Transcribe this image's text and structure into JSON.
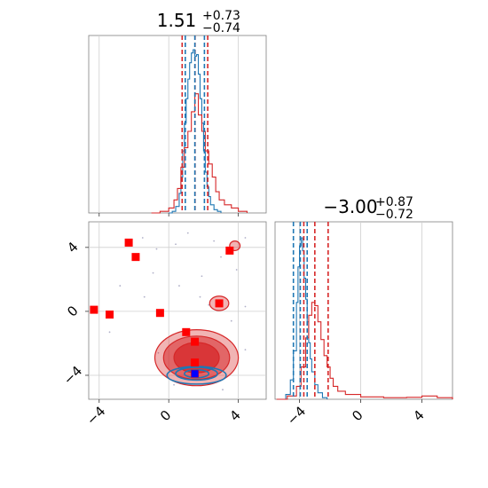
{
  "chart_data": [
    {
      "type": "line",
      "panel": "top-left",
      "title": {
        "value": "1.51",
        "upper": "+0.73",
        "lower": "−0.74"
      },
      "xlim": [
        -4.6,
        5.6
      ],
      "series": [
        {
          "color": "#1f77b4",
          "x": [
            0.0,
            0.2,
            0.4,
            0.6,
            0.7,
            0.8,
            0.9,
            1.0,
            1.1,
            1.2,
            1.3,
            1.4,
            1.5,
            1.6,
            1.7,
            1.8,
            1.9,
            2.0,
            2.1,
            2.2,
            2.3,
            2.4,
            2.6,
            2.8,
            3.0
          ],
          "values": [
            0.0,
            0.01,
            0.04,
            0.12,
            0.22,
            0.38,
            0.55,
            0.7,
            0.82,
            0.92,
            0.98,
            1.0,
            0.96,
            0.97,
            0.85,
            0.7,
            0.55,
            0.38,
            0.25,
            0.16,
            0.1,
            0.05,
            0.02,
            0.01,
            0.0
          ]
        },
        {
          "color": "#d62728",
          "x": [
            -1.0,
            -0.5,
            0.0,
            0.3,
            0.5,
            0.7,
            0.9,
            1.1,
            1.3,
            1.5,
            1.7,
            1.9,
            2.1,
            2.3,
            2.5,
            2.7,
            2.9,
            3.2,
            3.6,
            4.0,
            4.5
          ],
          "values": [
            0.0,
            0.01,
            0.03,
            0.08,
            0.15,
            0.28,
            0.4,
            0.5,
            0.62,
            0.73,
            0.6,
            0.5,
            0.38,
            0.3,
            0.22,
            0.13,
            0.08,
            0.05,
            0.03,
            0.01,
            0.0
          ]
        }
      ],
      "quantile_lines": [
        {
          "color": "#d62728",
          "x": [
            0.77,
            1.51,
            2.24
          ]
        },
        {
          "color": "#1f77b4",
          "x": [
            0.95,
            1.5,
            2.05
          ]
        }
      ]
    },
    {
      "type": "scatter",
      "panel": "bottom-left",
      "xlim": [
        -4.6,
        5.6
      ],
      "ylim": [
        -5.5,
        5.6
      ],
      "x_ticks": [
        -4,
        0,
        4
      ],
      "y_ticks": [
        -4,
        0,
        4
      ],
      "x_tick_labels": [
        "−4",
        "0",
        "4"
      ],
      "y_tick_labels": [
        "−4",
        "0",
        "4"
      ],
      "red_squares": [
        [
          -2.3,
          4.3
        ],
        [
          -1.9,
          3.4
        ],
        [
          -4.3,
          0.1
        ],
        [
          -3.4,
          -0.2
        ],
        [
          -0.5,
          -0.1
        ],
        [
          1.0,
          -1.3
        ],
        [
          1.5,
          -1.9
        ],
        [
          1.5,
          -3.2
        ],
        [
          1.5,
          -3.9
        ],
        [
          2.9,
          0.5
        ],
        [
          3.5,
          3.8
        ]
      ],
      "blue_squares": [
        [
          1.5,
          -3.9
        ]
      ],
      "red_contours": [
        {
          "cx": 1.6,
          "cy": -2.9,
          "rx": 2.4,
          "ry": 1.75,
          "opacity": 0.35
        },
        {
          "cx": 1.6,
          "cy": -2.9,
          "rx": 1.9,
          "ry": 1.35,
          "opacity": 0.55
        },
        {
          "cx": 1.6,
          "cy": -2.9,
          "rx": 1.3,
          "ry": 0.95,
          "opacity": 0.75
        },
        {
          "cx": 2.9,
          "cy": 0.5,
          "rx": 0.55,
          "ry": 0.45,
          "opacity": 0.35
        },
        {
          "cx": 3.8,
          "cy": 4.1,
          "rx": 0.3,
          "ry": 0.3,
          "opacity": 0.35
        }
      ],
      "blue_contours": [
        {
          "cx": 1.6,
          "cy": -4.0,
          "rx": 1.7,
          "ry": 0.55
        },
        {
          "cx": 1.6,
          "cy": -3.9,
          "rx": 1.2,
          "ry": 0.4
        },
        {
          "cx": 1.6,
          "cy": -3.9,
          "rx": 0.7,
          "ry": 0.25
        }
      ],
      "faint_points": [
        [
          -1.5,
          4.6
        ],
        [
          -0.7,
          3.9
        ],
        [
          0.4,
          4.2
        ],
        [
          1.1,
          4.9
        ],
        [
          2.6,
          4.4
        ],
        [
          3.0,
          3.4
        ],
        [
          4.4,
          4.6
        ],
        [
          3.9,
          2.6
        ],
        [
          1.9,
          2.2
        ],
        [
          0.6,
          1.6
        ],
        [
          -0.9,
          2.4
        ],
        [
          -2.8,
          1.6
        ],
        [
          2.3,
          0.4
        ],
        [
          1.8,
          0.9
        ],
        [
          -1.4,
          0.9
        ],
        [
          4.4,
          0.3
        ],
        [
          3.6,
          -0.6
        ],
        [
          -3.4,
          -1.3
        ],
        [
          -0.6,
          -2.6
        ],
        [
          4.4,
          -2.4
        ],
        [
          0.3,
          -4.6
        ],
        [
          3.1,
          -4.9
        ]
      ]
    },
    {
      "type": "line",
      "panel": "bottom-right",
      "title": {
        "value": "−3.00",
        "upper": "+0.87",
        "lower": "−0.72"
      },
      "xlim": [
        -5.6,
        6.0
      ],
      "x_ticks": [
        -4,
        0,
        4
      ],
      "x_tick_labels": [
        "−4",
        "0",
        "4"
      ],
      "series": [
        {
          "color": "#1f77b4",
          "x": [
            -5.2,
            -4.9,
            -4.6,
            -4.4,
            -4.2,
            -4.1,
            -4.0,
            -3.9,
            -3.8,
            -3.7,
            -3.6,
            -3.5,
            -3.4,
            -3.3,
            -3.2,
            -3.0,
            -2.8,
            -2.5,
            -2.2
          ],
          "values": [
            0.0,
            0.03,
            0.12,
            0.3,
            0.6,
            0.82,
            0.95,
            1.0,
            0.92,
            0.75,
            0.62,
            0.48,
            0.35,
            0.25,
            0.17,
            0.09,
            0.04,
            0.01,
            0.0
          ]
        },
        {
          "color": "#d62728",
          "x": [
            -5.5,
            -4.8,
            -4.2,
            -3.9,
            -3.6,
            -3.4,
            -3.2,
            -3.0,
            -2.8,
            -2.6,
            -2.4,
            -2.2,
            -2.0,
            -1.8,
            -1.5,
            -1.0,
            0.0,
            1.5,
            3.0,
            4.0,
            5.0,
            6.0
          ],
          "values": [
            0.0,
            0.02,
            0.08,
            0.2,
            0.38,
            0.52,
            0.6,
            0.58,
            0.48,
            0.37,
            0.27,
            0.2,
            0.13,
            0.08,
            0.05,
            0.03,
            0.015,
            0.01,
            0.012,
            0.02,
            0.01,
            0.0
          ]
        }
      ],
      "quantile_lines": [
        {
          "color": "#d62728",
          "x": [
            -3.72,
            -3.0,
            -2.13
          ]
        },
        {
          "color": "#1f77b4",
          "x": [
            -4.4,
            -3.95,
            -3.5
          ]
        }
      ]
    }
  ]
}
